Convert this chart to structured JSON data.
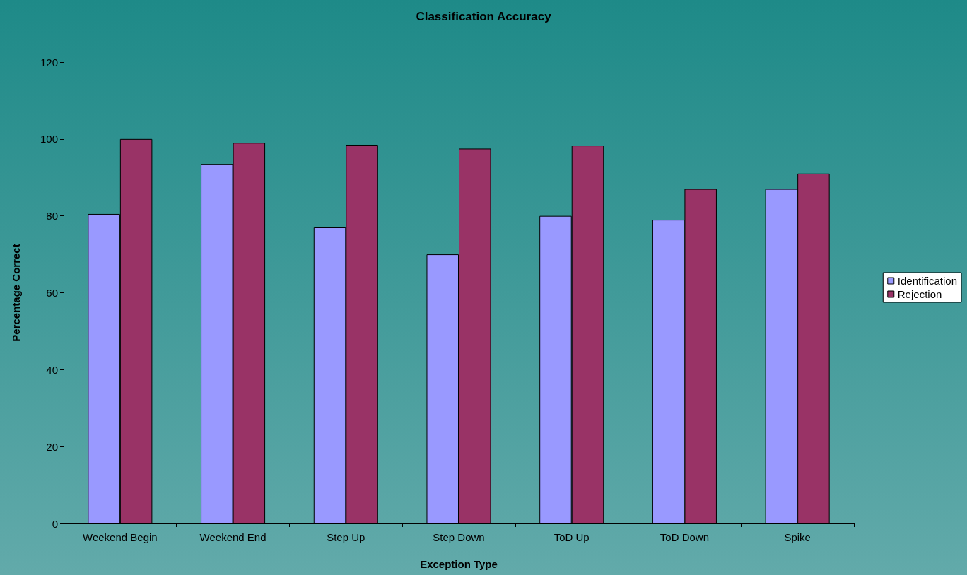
{
  "chart_data": {
    "type": "bar",
    "title": "Classification Accuracy",
    "xlabel": "Exception Type",
    "ylabel": "Percentage Correct",
    "categories": [
      "Weekend Begin",
      "Weekend End",
      "Step Up",
      "Step Down",
      "ToD Up",
      "ToD Down",
      "Spike"
    ],
    "series": [
      {
        "name": "Identification",
        "color": "#9999ff",
        "values": [
          80.5,
          93.5,
          77,
          70,
          80,
          79,
          87
        ]
      },
      {
        "name": "Rejection",
        "color": "#993366",
        "values": [
          100,
          99,
          98.5,
          97.5,
          98.3,
          87,
          91
        ]
      }
    ],
    "ylim": [
      0,
      120
    ],
    "yticks": [
      0,
      20,
      40,
      60,
      80,
      100,
      120
    ],
    "grid": false,
    "legend": "right"
  }
}
